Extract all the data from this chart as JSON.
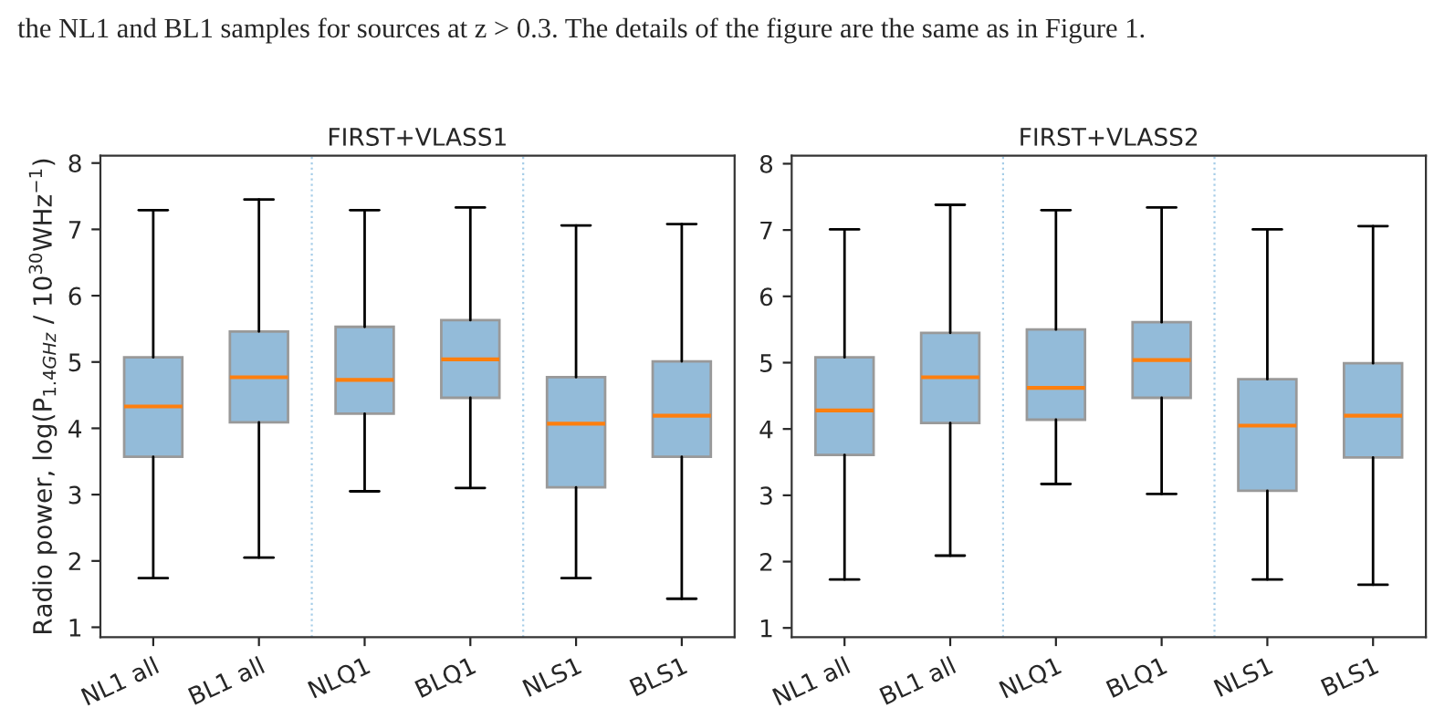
{
  "chart_data": [
    {
      "type": "box",
      "title": "FIRST+VLASS1",
      "ylabel": "Radio power, log(P$_{1.4GHz}$ / 10$^{30}$WHz$^{−1}$)",
      "annotations": [
        "the NL1 and BL1 samples for sources at z > 0.3. The details of the figure are the same as in Figure 1."
      ],
      "categories": [
        "NL1 all",
        "BL1 all",
        "NLQ1",
        "BLQ1",
        "NLS1",
        "BLS1"
      ],
      "color": "#93bbd9",
      "boxes": [
        {
          "low": 1.74,
          "q1": 3.57,
          "median": 4.33,
          "q3": 5.07,
          "high": 7.29
        },
        {
          "low": 2.05,
          "q1": 4.09,
          "median": 4.77,
          "q3": 5.46,
          "high": 7.45
        },
        {
          "low": 3.05,
          "q1": 4.22,
          "median": 4.73,
          "q3": 5.53,
          "high": 7.29
        },
        {
          "low": 3.1,
          "q1": 4.46,
          "median": 5.04,
          "q3": 5.63,
          "high": 7.33
        },
        {
          "low": 1.74,
          "q1": 3.11,
          "median": 4.07,
          "q3": 4.77,
          "high": 7.06
        },
        {
          "low": 1.43,
          "q1": 3.57,
          "median": 4.19,
          "q3": 5.01,
          "high": 7.08
        }
      ],
      "ylim": [
        0.85,
        8.11
      ],
      "yticks": [
        1,
        2,
        3,
        4,
        5,
        6,
        7,
        8
      ],
      "grid": false
    },
    {
      "type": "box",
      "title": "FIRST+VLASS2",
      "categories": [
        "NL1 all",
        "BL1 all",
        "NLQ1",
        "BLQ1",
        "NLS1",
        "BLS1"
      ],
      "color": "#93bbd9",
      "boxes": [
        {
          "low": 1.73,
          "q1": 3.61,
          "median": 4.28,
          "q3": 5.08,
          "high": 7.01
        },
        {
          "low": 2.09,
          "q1": 4.09,
          "median": 4.78,
          "q3": 5.45,
          "high": 7.38
        },
        {
          "low": 3.17,
          "q1": 4.14,
          "median": 4.62,
          "q3": 5.5,
          "high": 7.3
        },
        {
          "low": 3.02,
          "q1": 4.47,
          "median": 5.04,
          "q3": 5.61,
          "high": 7.34
        },
        {
          "low": 1.73,
          "q1": 3.07,
          "median": 4.05,
          "q3": 4.75,
          "high": 7.01
        },
        {
          "low": 1.65,
          "q1": 3.57,
          "median": 4.2,
          "q3": 4.99,
          "high": 7.06
        }
      ],
      "ylim": [
        0.86,
        8.12
      ],
      "yticks": [
        1,
        2,
        3,
        4,
        5,
        6,
        7,
        8
      ],
      "grid": false
    }
  ]
}
